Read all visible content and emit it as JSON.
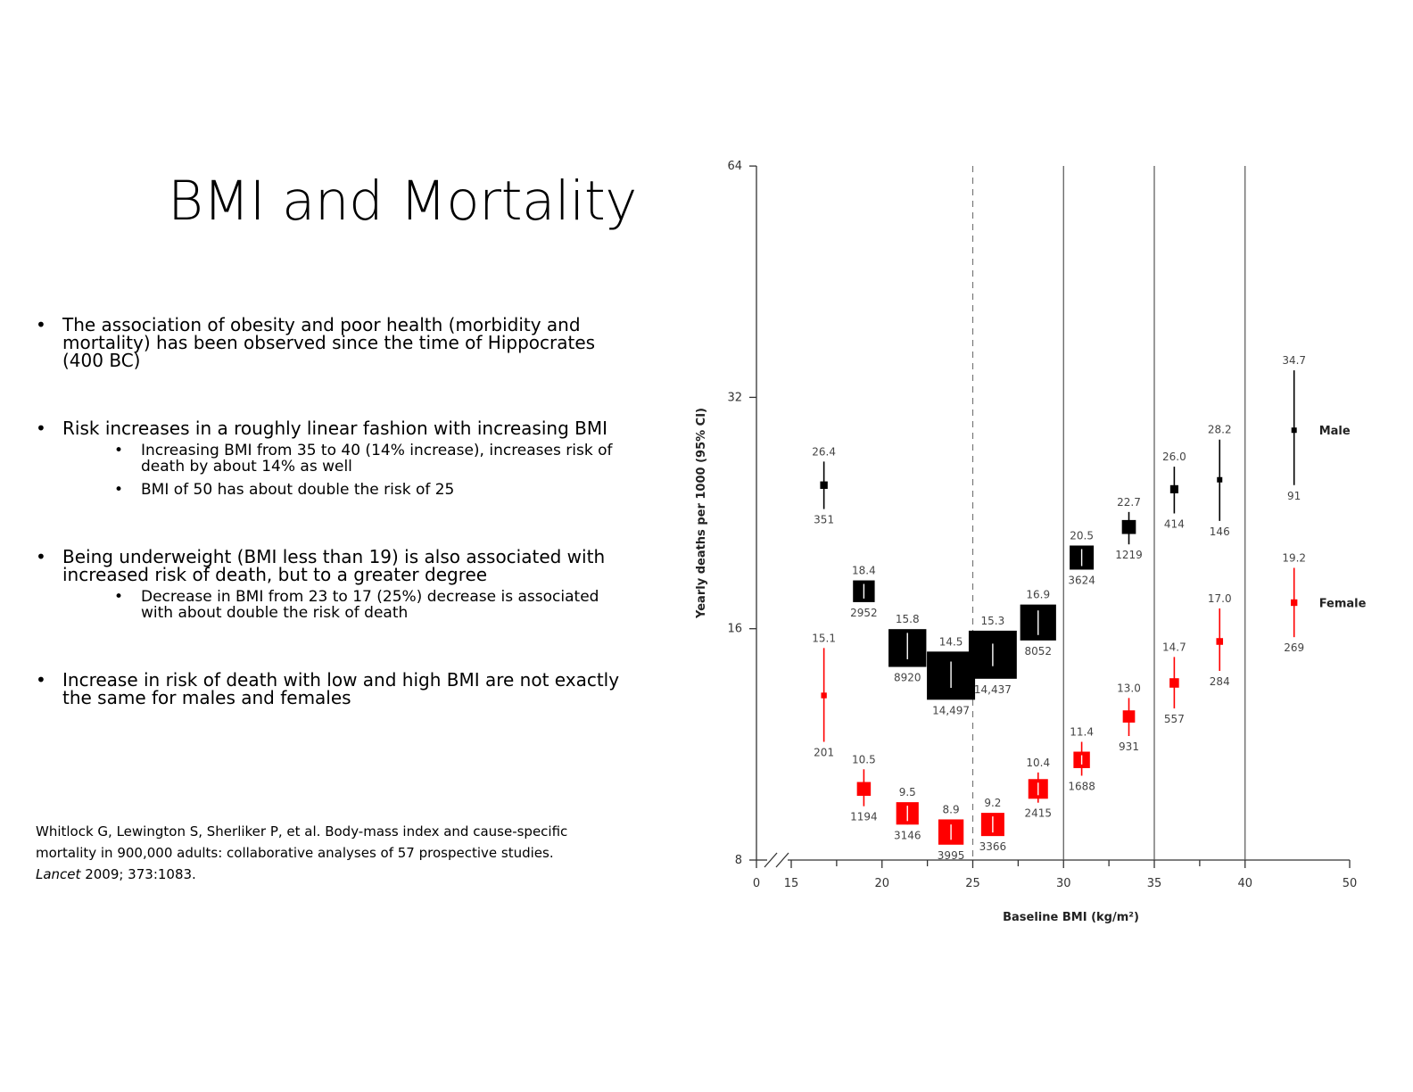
{
  "slide": {
    "title": "BMI and Mortality",
    "bullets": [
      {
        "text": "The association of obesity and poor health (morbidity and mortality) has been observed since the time of Hippocrates (400 BC)",
        "sub": []
      },
      {
        "text": "Risk increases in a roughly linear fashion with increasing BMI",
        "sub": [
          "Increasing BMI from 35 to 40 (14% increase), increases risk of death by about 14% as well",
          "BMI of 50 has about double the risk of 25"
        ]
      },
      {
        "text": "Being underweight (BMI less than 19) is also associated with increased risk of death, but to a greater degree",
        "sub": [
          "Decrease in BMI from 23 to 17 (25%) decrease is associated with about double the risk of death"
        ]
      },
      {
        "text": "Increase in risk of death with low and high BMI are not exactly the same for males and females",
        "sub": []
      }
    ],
    "citation": {
      "before": "Whitlock G, Lewington S, Sherliker P, et al. Body-mass index and cause-specific mortality in 900,000 adults: collaborative analyses of 57 prospective studies.",
      "journal": "Lancet",
      "after": " 2009; 373:1083."
    }
  },
  "chart_data": {
    "type": "scatter",
    "xlabel": "Baseline BMI (kg/m²)",
    "ylabel": "Yearly deaths per 1000 (95% CI)",
    "y_scale": "log2",
    "ylim": [
      8,
      64
    ],
    "y_ticks": [
      8,
      16,
      32,
      64
    ],
    "x_ticks": [
      0,
      15,
      20,
      25,
      30,
      35,
      40,
      50
    ],
    "x_minor_ticks": [
      17.5,
      22.5,
      27.5,
      32.5,
      37.5
    ],
    "axis_break": true,
    "reference_line_dashed": 25,
    "reference_lines_solid": [
      30,
      35,
      40
    ],
    "colors": {
      "male": "#000000",
      "female": "#ff0000"
    },
    "series": [
      {
        "name": "Male",
        "points": [
          {
            "x": 16.8,
            "y": 24.6,
            "lo": 22.9,
            "hi": 26.4,
            "label": "26.4",
            "n": "351"
          },
          {
            "x": 19.0,
            "y": 17.9,
            "lo": 17.4,
            "hi": 18.4,
            "label": "18.4",
            "n": "2952"
          },
          {
            "x": 21.4,
            "y": 15.1,
            "lo": 14.6,
            "hi": 15.8,
            "label": "15.8",
            "n": "8920"
          },
          {
            "x": 23.8,
            "y": 13.9,
            "lo": 13.4,
            "hi": 14.5,
            "label": "14.5",
            "n": "14,497"
          },
          {
            "x": 26.1,
            "y": 14.8,
            "lo": 14.3,
            "hi": 15.3,
            "label": "15.3",
            "n": "14,437"
          },
          {
            "x": 28.6,
            "y": 16.3,
            "lo": 15.7,
            "hi": 16.9,
            "label": "16.9",
            "n": "8052"
          },
          {
            "x": 31.0,
            "y": 19.8,
            "lo": 19.1,
            "hi": 20.5,
            "label": "20.5",
            "n": "3624"
          },
          {
            "x": 33.6,
            "y": 21.7,
            "lo": 20.6,
            "hi": 22.7,
            "label": "22.7",
            "n": "1219"
          },
          {
            "x": 36.1,
            "y": 24.3,
            "lo": 22.6,
            "hi": 26.0,
            "label": "26.0",
            "n": "414"
          },
          {
            "x": 38.6,
            "y": 25.0,
            "lo": 22.1,
            "hi": 28.2,
            "label": "28.2",
            "n": "146"
          },
          {
            "x": 42.7,
            "y": 29.0,
            "lo": 24.6,
            "hi": 34.7,
            "label": "34.7",
            "n": "91"
          }
        ]
      },
      {
        "name": "Female",
        "points": [
          {
            "x": 16.8,
            "y": 13.1,
            "lo": 11.4,
            "hi": 15.1,
            "label": "15.1",
            "n": "201"
          },
          {
            "x": 19.0,
            "y": 9.9,
            "lo": 9.4,
            "hi": 10.5,
            "label": "10.5",
            "n": "1194"
          },
          {
            "x": 21.4,
            "y": 9.2,
            "lo": 8.9,
            "hi": 9.5,
            "label": "9.5",
            "n": "3146"
          },
          {
            "x": 23.8,
            "y": 8.7,
            "lo": 8.5,
            "hi": 8.9,
            "label": "8.9",
            "n": "3995"
          },
          {
            "x": 26.1,
            "y": 8.9,
            "lo": 8.6,
            "hi": 9.2,
            "label": "9.2",
            "n": "3366"
          },
          {
            "x": 28.6,
            "y": 9.9,
            "lo": 9.5,
            "hi": 10.4,
            "label": "10.4",
            "n": "2415"
          },
          {
            "x": 31.0,
            "y": 10.8,
            "lo": 10.3,
            "hi": 11.4,
            "label": "11.4",
            "n": "1688"
          },
          {
            "x": 33.6,
            "y": 12.3,
            "lo": 11.6,
            "hi": 13.0,
            "label": "13.0",
            "n": "931"
          },
          {
            "x": 36.1,
            "y": 13.6,
            "lo": 12.6,
            "hi": 14.7,
            "label": "14.7",
            "n": "557"
          },
          {
            "x": 38.6,
            "y": 15.4,
            "lo": 14.1,
            "hi": 17.0,
            "label": "17.0",
            "n": "284"
          },
          {
            "x": 42.7,
            "y": 17.3,
            "lo": 15.6,
            "hi": 19.2,
            "label": "19.2",
            "n": "269"
          }
        ]
      }
    ]
  }
}
